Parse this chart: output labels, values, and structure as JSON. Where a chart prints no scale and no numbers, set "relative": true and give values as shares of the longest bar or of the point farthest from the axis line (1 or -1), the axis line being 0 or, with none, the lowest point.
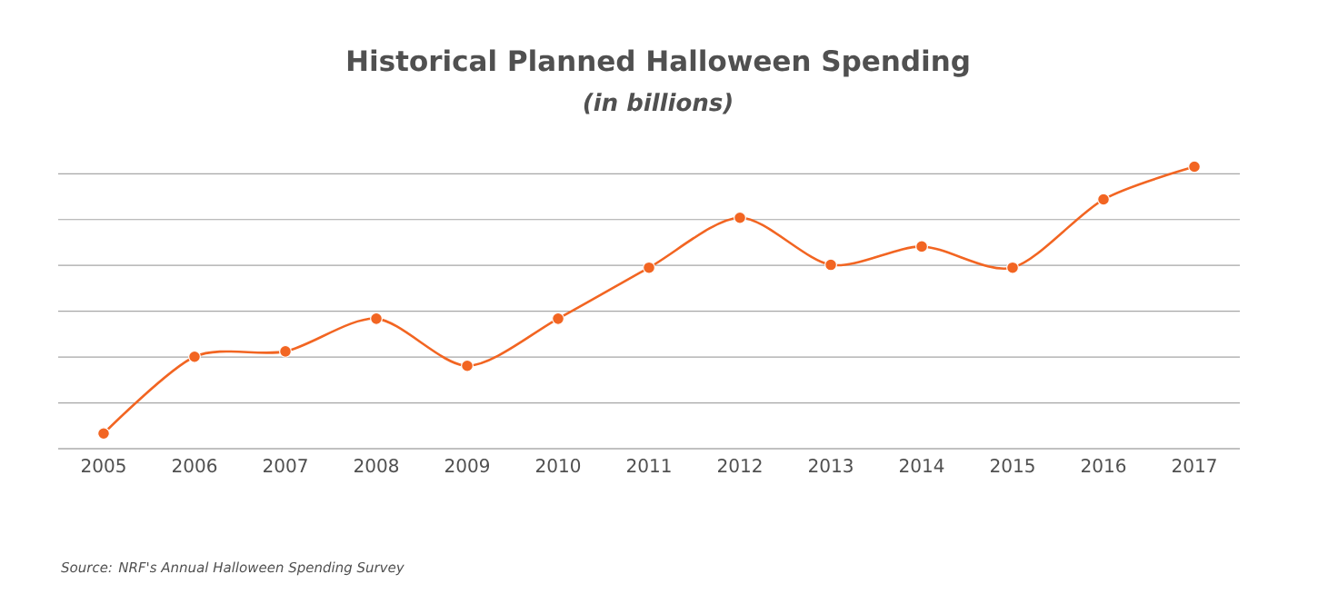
{
  "chart_data": {
    "type": "line",
    "title": "Historical Planned Halloween Spending",
    "subtitle": "(in billions)",
    "categories": [
      "2005",
      "2006",
      "2007",
      "2008",
      "2009",
      "2010",
      "2011",
      "2012",
      "2013",
      "2014",
      "2015",
      "2016",
      "2017"
    ],
    "values": [
      0.054,
      0.326,
      0.345,
      0.461,
      0.294,
      0.461,
      0.642,
      0.819,
      0.652,
      0.717,
      0.642,
      0.884,
      1
    ],
    "color": "#f26522",
    "relative": true,
    "grid": "y",
    "marker": "circle",
    "line_style": "solid",
    "annotations": [
      "Source: NRF's Annual Halloween Spending Survey"
    ]
  }
}
